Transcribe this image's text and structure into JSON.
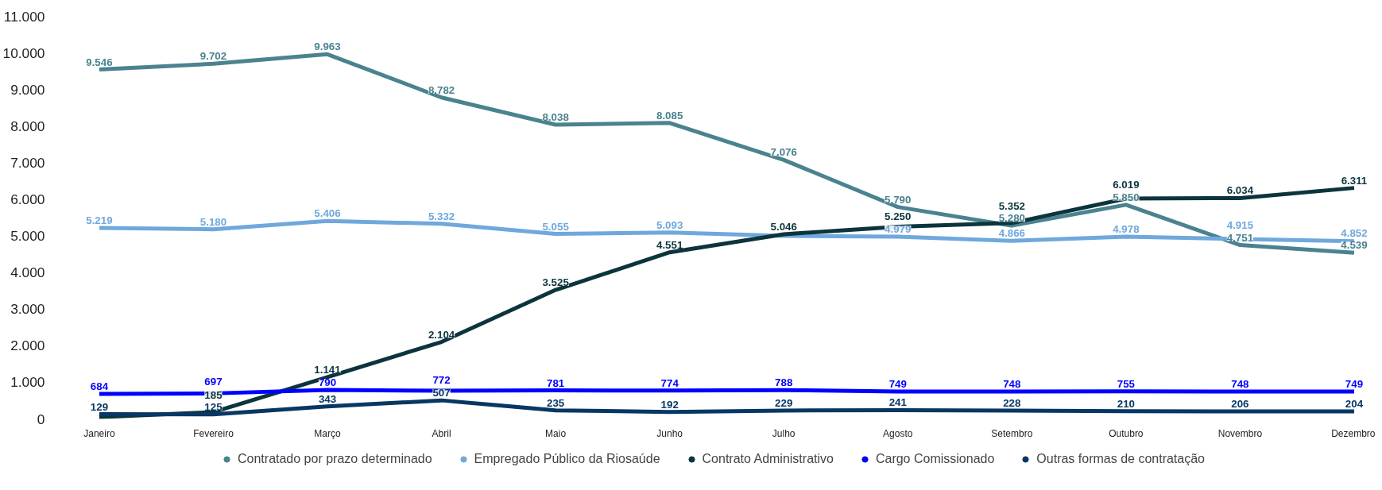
{
  "chart_data": {
    "type": "line",
    "categories": [
      "Janeiro",
      "Fevereiro",
      "Março",
      "Abril",
      "Maio",
      "Junho",
      "Julho",
      "Agosto",
      "Setembro",
      "Outubro",
      "Novembro",
      "Dezembro"
    ],
    "ylim": [
      0,
      11000
    ],
    "yticks": [
      {
        "value": 0,
        "label": "0"
      },
      {
        "value": 1000,
        "label": "1.000"
      },
      {
        "value": 2000,
        "label": "2.000"
      },
      {
        "value": 3000,
        "label": "3.000"
      },
      {
        "value": 4000,
        "label": "4.000"
      },
      {
        "value": 5000,
        "label": "5.000"
      },
      {
        "value": 6000,
        "label": "6.000"
      },
      {
        "value": 7000,
        "label": "7.000"
      },
      {
        "value": 8000,
        "label": "8.000"
      },
      {
        "value": 9000,
        "label": "9.000"
      },
      {
        "value": 10000,
        "label": "10.000"
      },
      {
        "value": 11000,
        "label": "11.000"
      }
    ],
    "grid": false,
    "legend": "bottom",
    "series": [
      {
        "name": "Contratado por prazo determinado",
        "color": "#4a838f",
        "values": [
          9546,
          9702,
          9963,
          8782,
          8038,
          8085,
          7076,
          5790,
          5280,
          5850,
          4751,
          4539
        ],
        "value_labels": [
          "9.546",
          "9.702",
          "9.963",
          "8.782",
          "8.038",
          "8.085",
          "7.076",
          "5.790",
          "5.280",
          "5.850",
          "4.751",
          "4.539"
        ]
      },
      {
        "name": "Empregado Público da Riosaúde",
        "color": "#6fa8dc",
        "values": [
          5219,
          5180,
          5406,
          5332,
          5055,
          5093,
          5000,
          4979,
          4866,
          4978,
          4915,
          4852
        ],
        "value_labels": [
          "5.219",
          "5.180",
          "5.406",
          "5.332",
          "5.055",
          "5.093",
          null,
          "4.979",
          "4.866",
          "4.978",
          "4.915",
          "4.852"
        ]
      },
      {
        "name": "Contrato Administrativo",
        "color": "#0c343d",
        "values": [
          50,
          185,
          1141,
          2104,
          3525,
          4551,
          5046,
          5250,
          5352,
          6019,
          6034,
          6311
        ],
        "value_labels": [
          null,
          "185",
          "1.141",
          "2.104",
          "3.525",
          "4.551",
          "5.046",
          "5.250",
          "5.352",
          "6.019",
          "6.034",
          "6.311"
        ]
      },
      {
        "name": "Cargo Comissionado",
        "color": "#0000ff",
        "values": [
          684,
          697,
          790,
          772,
          781,
          774,
          788,
          749,
          748,
          755,
          748,
          749
        ],
        "value_labels": [
          "684",
          "697",
          "790",
          "772",
          "781",
          "774",
          "788",
          "749",
          "748",
          "755",
          "748",
          "749"
        ]
      },
      {
        "name": "Outras formas de contratação",
        "color": "#073763",
        "values": [
          129,
          125,
          343,
          507,
          235,
          192,
          229,
          241,
          228,
          210,
          206,
          204
        ],
        "value_labels": [
          "129",
          "125",
          "343",
          "507",
          "235",
          "192",
          "229",
          "241",
          "228",
          "210",
          "206",
          "204"
        ]
      }
    ]
  }
}
